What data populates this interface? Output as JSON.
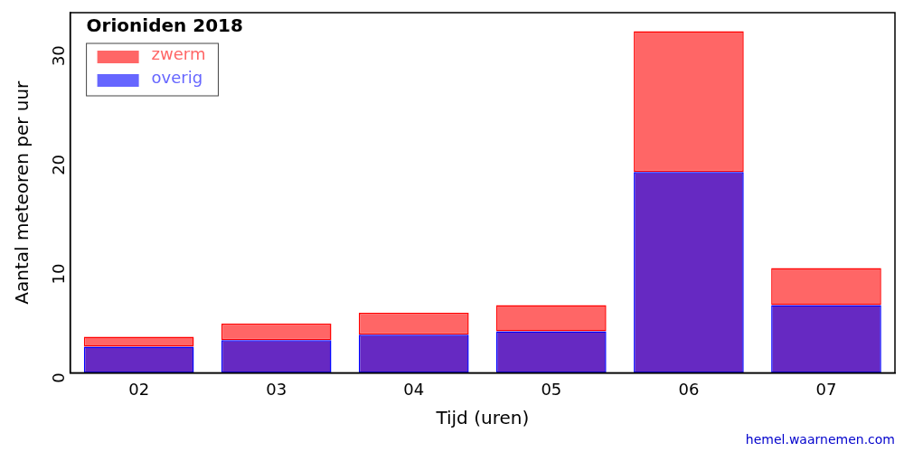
{
  "chart_data": {
    "type": "bar",
    "title": "Orioniden 2018",
    "x_label": "Tijd (uren)",
    "y_label": "Aantal meteoren per uur",
    "annotations": [
      "hemel.waarnemen.com"
    ],
    "categories": [
      "02",
      "03",
      "04",
      "05",
      "06",
      "07"
    ],
    "series": [
      {
        "name": "zwerm",
        "color": "#ff0000",
        "values": [
          0.9,
          1.5,
          2.0,
          2.4,
          12.9,
          3.4
        ]
      },
      {
        "name": "overig",
        "color": "#0000ff",
        "values": [
          2.4,
          3.0,
          3.5,
          3.8,
          18.4,
          6.2
        ]
      }
    ],
    "stacked": true,
    "ylim": [
      0,
      33
    ],
    "yticks": [
      0,
      10,
      20,
      30
    ],
    "grid": false,
    "legend": "upper left"
  }
}
